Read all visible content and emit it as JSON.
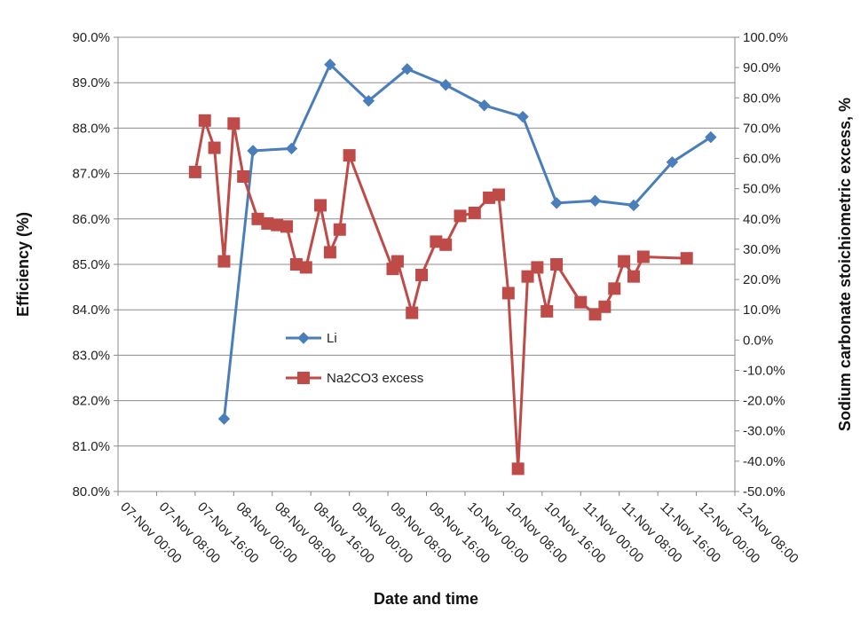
{
  "chart_data": {
    "type": "line",
    "title": "",
    "xlabel": "Date and time",
    "ylabel_left": "Efficiency (%)",
    "ylabel_right": "Sodium carbonate stoichiometric excess, %",
    "x_ticks": [
      "07-Nov 00:00",
      "07-Nov 08:00",
      "07-Nov 16:00",
      "08-Nov 00:00",
      "08-Nov 08:00",
      "08-Nov 16:00",
      "09-Nov 00:00",
      "09-Nov 08:00",
      "09-Nov 16:00",
      "10-Nov 00:00",
      "10-Nov 08:00",
      "10-Nov 16:00",
      "11-Nov 00:00",
      "11-Nov 08:00",
      "11-Nov 16:00",
      "12-Nov 00:00",
      "12-Nov 08:00"
    ],
    "x_unit": "hours since 07-Nov 00:00",
    "xlim": [
      0,
      128
    ],
    "ylim_left": [
      80.0,
      90.0
    ],
    "ylim_right": [
      -50.0,
      100.0
    ],
    "y_ticks_left": [
      "80.0%",
      "81.0%",
      "82.0%",
      "83.0%",
      "84.0%",
      "85.0%",
      "86.0%",
      "87.0%",
      "88.0%",
      "89.0%",
      "90.0%"
    ],
    "y_ticks_right": [
      "-50.0%",
      "-40.0%",
      "-30.0%",
      "-20.0%",
      "-10.0%",
      "0.0%",
      "10.0%",
      "20.0%",
      "30.0%",
      "40.0%",
      "50.0%",
      "60.0%",
      "70.0%",
      "80.0%",
      "90.0%",
      "100.0%"
    ],
    "grid": true,
    "legend_position": "center-left",
    "series": [
      {
        "name": "Li",
        "axis": "left",
        "color": "#4a7ebb",
        "marker": "diamond",
        "x": [
          22,
          28,
          36,
          44,
          52,
          60,
          68,
          76,
          84,
          91,
          99,
          107,
          115,
          123
        ],
        "y": [
          81.6,
          87.5,
          87.55,
          89.4,
          88.6,
          89.3,
          88.95,
          88.5,
          88.25,
          86.35,
          86.4,
          86.3,
          87.25,
          87.8
        ]
      },
      {
        "name": "Na2CO3 excess",
        "axis": "right",
        "color": "#be4b48",
        "marker": "square",
        "x": [
          16,
          18,
          20,
          22,
          24,
          26,
          29,
          31,
          33,
          35,
          37,
          39,
          42,
          44,
          46,
          48,
          57,
          58,
          61,
          63,
          66,
          68,
          71,
          74,
          77,
          79,
          81,
          83,
          85,
          87,
          89,
          91,
          96,
          99,
          101,
          103,
          105,
          107,
          109,
          118
        ],
        "y": [
          55.5,
          72.5,
          63.5,
          26,
          71.5,
          54,
          40,
          38.5,
          38,
          37.5,
          25,
          24,
          44.5,
          29,
          36.5,
          61,
          23.5,
          26,
          9,
          21.5,
          32.5,
          31.5,
          41,
          42,
          47,
          48,
          15.5,
          -42.5,
          21,
          24,
          9.5,
          25,
          12.5,
          8.5,
          11,
          17,
          26,
          21,
          27.5,
          27
        ]
      }
    ]
  }
}
